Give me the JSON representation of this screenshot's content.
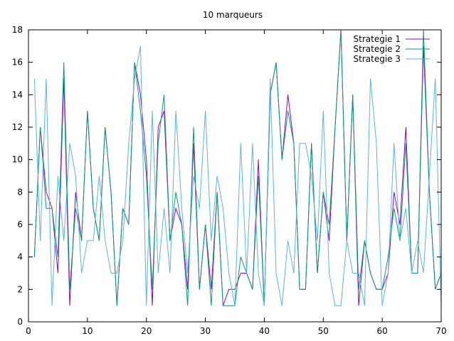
{
  "chart_data": {
    "type": "line",
    "title": "10 marqueurs",
    "xlabel": "",
    "ylabel": "",
    "xlim": [
      0,
      70
    ],
    "ylim": [
      0,
      18
    ],
    "xticks": [
      0,
      10,
      20,
      30,
      40,
      50,
      60,
      70
    ],
    "yticks": [
      0,
      2,
      4,
      6,
      8,
      10,
      12,
      14,
      16,
      18
    ],
    "grid": false,
    "legend_position": "top-right",
    "series": [
      {
        "name": "Strategie 1",
        "color": "#9400d3",
        "x": [
          1,
          2,
          3,
          4,
          5,
          6,
          7,
          8,
          9,
          10,
          11,
          12,
          13,
          14,
          15,
          16,
          17,
          18,
          19,
          20,
          21,
          22,
          23,
          24,
          25,
          26,
          27,
          28,
          29,
          30,
          31,
          32,
          33,
          34,
          35,
          36,
          37,
          38,
          39,
          40,
          41,
          42,
          43,
          44,
          45,
          46,
          47,
          48,
          49,
          50,
          51,
          52,
          53,
          54,
          55,
          56,
          57,
          58,
          59,
          60,
          61,
          62,
          63,
          64,
          65,
          66,
          67,
          68,
          69,
          70
        ],
        "values": [
          4,
          12,
          8,
          7,
          3,
          15,
          1,
          8,
          5,
          13,
          7,
          5,
          12,
          8,
          1,
          7,
          6,
          16,
          14,
          10,
          1,
          12,
          13,
          5,
          7,
          6,
          2,
          11,
          2,
          6,
          2,
          8,
          1,
          2,
          2,
          3,
          3,
          2,
          10,
          1,
          14,
          16,
          10,
          14,
          11,
          2,
          2,
          11,
          3,
          8,
          5,
          12,
          18,
          5,
          14,
          1,
          5,
          3,
          2,
          2,
          3,
          8,
          6,
          12,
          3,
          3,
          17,
          8,
          2,
          3
        ]
      },
      {
        "name": "Strategie 2",
        "color": "#009e73",
        "x": [
          1,
          2,
          3,
          4,
          5,
          6,
          7,
          8,
          9,
          10,
          11,
          12,
          13,
          14,
          15,
          16,
          17,
          18,
          19,
          20,
          21,
          22,
          23,
          24,
          25,
          26,
          27,
          28,
          29,
          30,
          31,
          32,
          33,
          34,
          35,
          36,
          37,
          38,
          39,
          40,
          41,
          42,
          43,
          44,
          45,
          46,
          47,
          48,
          49,
          50,
          51,
          52,
          53,
          54,
          55,
          56,
          57,
          58,
          59,
          60,
          61,
          62,
          63,
          64,
          65,
          66,
          67,
          68,
          69,
          70
        ],
        "values": [
          4,
          12,
          7,
          7,
          4,
          16,
          2,
          7,
          5,
          13,
          7,
          5,
          12,
          8,
          1,
          7,
          6,
          16,
          13,
          9,
          2,
          11,
          14,
          5,
          8,
          6,
          1,
          12,
          2,
          6,
          1,
          8,
          1,
          1,
          1,
          4,
          3,
          2,
          9,
          1,
          14,
          16,
          10,
          13,
          11,
          2,
          2,
          11,
          3,
          8,
          6,
          12,
          18,
          5,
          14,
          2,
          5,
          3,
          2,
          2,
          4,
          7,
          5,
          11,
          3,
          3,
          18,
          8,
          2,
          3
        ]
      },
      {
        "name": "Strategie 3",
        "color": "#56b4e9",
        "x": [
          1,
          2,
          3,
          4,
          5,
          6,
          7,
          8,
          9,
          10,
          11,
          12,
          13,
          14,
          15,
          16,
          17,
          18,
          19,
          20,
          21,
          22,
          23,
          24,
          25,
          26,
          27,
          28,
          29,
          30,
          31,
          32,
          33,
          34,
          35,
          36,
          37,
          38,
          39,
          40,
          41,
          42,
          43,
          44,
          45,
          46,
          47,
          48,
          49,
          50,
          51,
          52,
          53,
          54,
          55,
          56,
          57,
          58,
          59,
          60,
          61,
          62,
          63,
          64,
          65,
          66,
          67,
          68,
          69,
          70
        ],
        "values": [
          15,
          5,
          15,
          1,
          9,
          5,
          11,
          9,
          3,
          5,
          5,
          9,
          5,
          3,
          3,
          5,
          11,
          15,
          17,
          1,
          13,
          3,
          7,
          3,
          13,
          7,
          3,
          9,
          7,
          13,
          5,
          9,
          7,
          3,
          1,
          11,
          3,
          11,
          3,
          1,
          15,
          3,
          1,
          5,
          3,
          11,
          11,
          9,
          5,
          13,
          3,
          1,
          1,
          5,
          3,
          3,
          1,
          15,
          11,
          1,
          3,
          11,
          5,
          7,
          3,
          5,
          3,
          9,
          15,
          1
        ]
      }
    ]
  }
}
